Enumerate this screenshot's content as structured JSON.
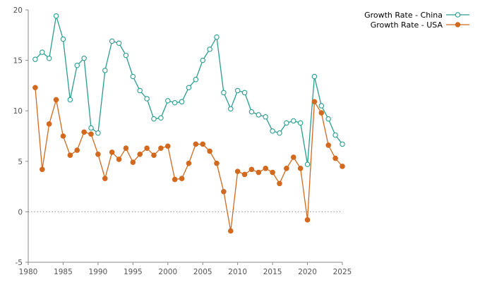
{
  "chart_data": {
    "type": "line",
    "title": "",
    "xlabel": "",
    "ylabel": "",
    "xlim": [
      1980,
      2025
    ],
    "ylim": [
      -5,
      20
    ],
    "x_ticks": [
      1980,
      1985,
      1990,
      1995,
      2000,
      2005,
      2010,
      2015,
      2020,
      2025
    ],
    "y_ticks": [
      -5,
      0,
      5,
      10,
      15,
      20
    ],
    "zero_line": "dotted",
    "grid": false,
    "legend_position": "top-right",
    "x": [
      1981,
      1982,
      1983,
      1984,
      1985,
      1986,
      1987,
      1988,
      1989,
      1990,
      1991,
      1992,
      1993,
      1994,
      1995,
      1996,
      1997,
      1998,
      1999,
      2000,
      2001,
      2002,
      2003,
      2004,
      2005,
      2006,
      2007,
      2008,
      2009,
      2010,
      2011,
      2012,
      2013,
      2014,
      2015,
      2016,
      2017,
      2018,
      2019,
      2020,
      2021,
      2022,
      2023,
      2024,
      2025
    ],
    "series": [
      {
        "name": "Growth Rate - China",
        "color": "#2a9d8f",
        "marker": "open-circle",
        "values": [
          15.1,
          15.8,
          15.2,
          19.4,
          17.1,
          11.1,
          14.5,
          15.2,
          8.3,
          7.8,
          14.0,
          16.9,
          16.7,
          15.5,
          13.4,
          12.0,
          11.2,
          9.2,
          9.3,
          11.0,
          10.8,
          10.9,
          12.3,
          13.1,
          15.0,
          16.1,
          17.3,
          11.8,
          10.2,
          12.0,
          11.8,
          9.9,
          9.6,
          9.4,
          8.0,
          7.8,
          8.8,
          9.0,
          8.8,
          4.7,
          13.4,
          10.5,
          9.2,
          7.6,
          6.7
        ]
      },
      {
        "name": "Growth Rate - USA",
        "color": "#d2691e",
        "marker": "filled-circle",
        "values": [
          12.3,
          4.2,
          8.7,
          11.1,
          7.5,
          5.6,
          6.1,
          7.9,
          7.7,
          5.7,
          3.3,
          5.9,
          5.2,
          6.3,
          4.9,
          5.7,
          6.3,
          5.6,
          6.3,
          6.5,
          3.2,
          3.3,
          4.8,
          6.7,
          6.7,
          6.0,
          4.8,
          2.0,
          -1.9,
          4.0,
          3.7,
          4.2,
          3.9,
          4.3,
          3.9,
          2.8,
          4.3,
          5.4,
          4.3,
          -0.8,
          10.9,
          9.8,
          6.6,
          5.3,
          4.5
        ]
      }
    ]
  }
}
